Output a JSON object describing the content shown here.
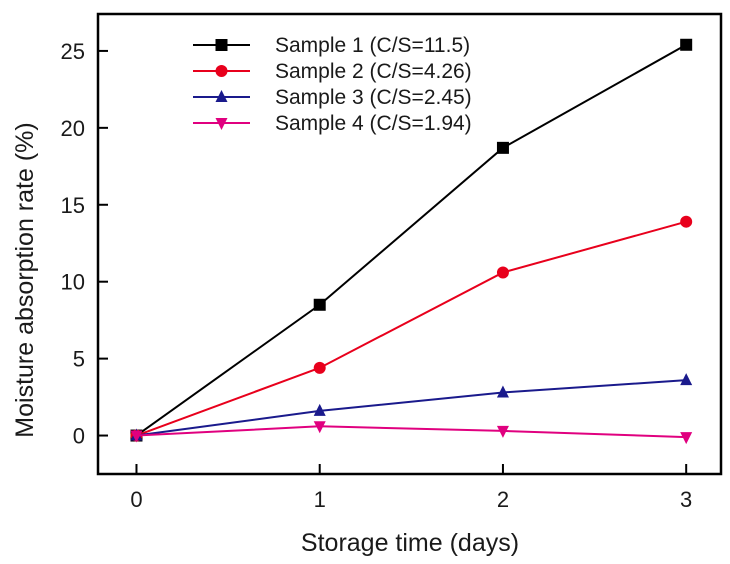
{
  "chart_data": {
    "type": "line",
    "title": "",
    "xlabel": "Storage time  (days)",
    "ylabel": "Moisture absorption rate (%)",
    "x": [
      0,
      1,
      2,
      3
    ],
    "xticks": [
      0,
      1,
      2,
      3
    ],
    "xtick_labels": [
      "0",
      "1",
      "2",
      "3"
    ],
    "yticks": [
      0,
      5,
      10,
      15,
      20,
      25
    ],
    "ytick_labels": [
      "0",
      "5",
      "10",
      "15",
      "20",
      "25"
    ],
    "xlim": [
      -0.21,
      3.19
    ],
    "ylim": [
      -2.5,
      27.4
    ],
    "grid": false,
    "legend_position": "top-center",
    "series": [
      {
        "name": "Sample 1 (C/S=11.5)",
        "color": "#000000",
        "marker": "square",
        "values": [
          0,
          8.5,
          18.7,
          25.4
        ]
      },
      {
        "name": "Sample 2 (C/S=4.26)",
        "color": "#e8001c",
        "marker": "circle",
        "values": [
          0,
          4.4,
          10.6,
          13.9
        ]
      },
      {
        "name": "Sample 3 (C/S=2.45)",
        "color": "#1a1a8c",
        "marker": "triangle-up",
        "values": [
          0,
          1.6,
          2.8,
          3.6
        ]
      },
      {
        "name": "Sample 4 (C/S=1.94)",
        "color": "#e0007f",
        "marker": "triangle-down",
        "values": [
          0,
          0.6,
          0.3,
          -0.1
        ]
      }
    ]
  }
}
